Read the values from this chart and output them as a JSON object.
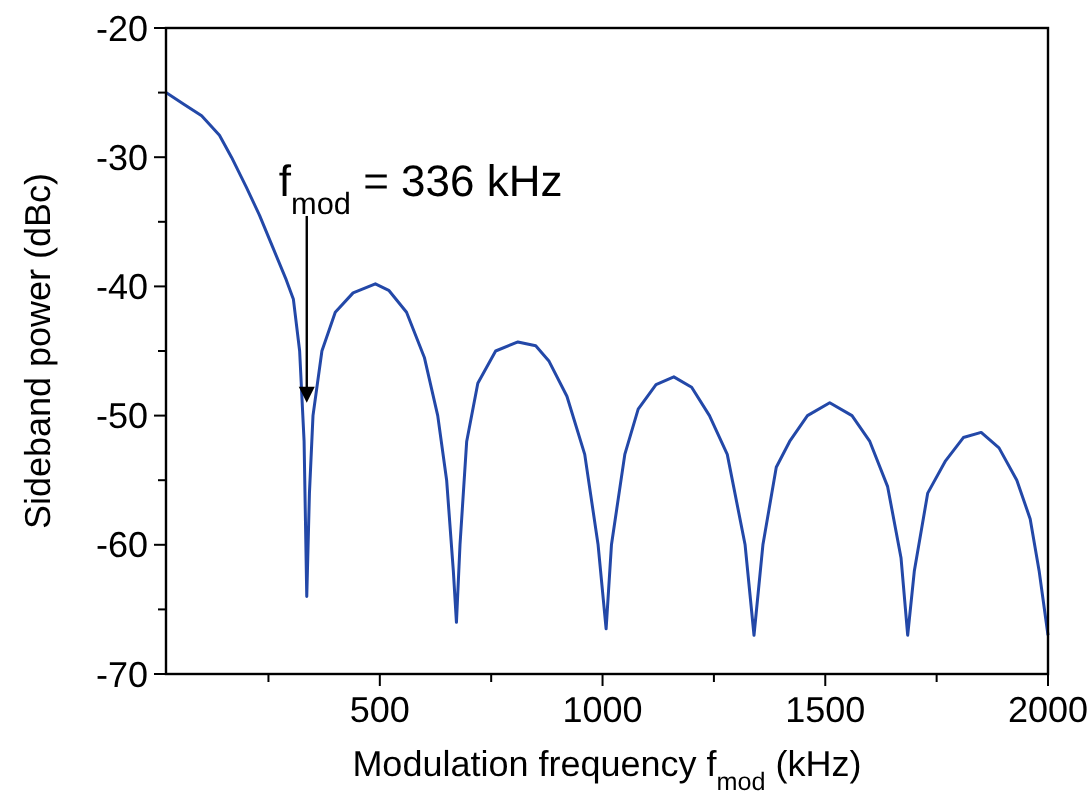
{
  "chart_data": {
    "type": "line",
    "xlabel": "Modulation frequency f$_{mod}$ (kHz)",
    "ylabel": "Sideband power (dBc)",
    "xlim": [
      20,
      2000
    ],
    "ylim": [
      -70,
      -20
    ],
    "xticks": [
      {
        "value": 250,
        "label": null
      },
      500,
      {
        "value": 750,
        "label": null
      },
      1000,
      {
        "value": 1250,
        "label": null
      },
      1500,
      {
        "value": 1750,
        "label": null
      },
      2000
    ],
    "yticks": [
      -70,
      {
        "value": -65,
        "label": null
      },
      -60,
      {
        "value": -55,
        "label": null
      },
      -50,
      {
        "value": -45,
        "label": null
      },
      -40,
      {
        "value": -35,
        "label": null
      },
      -30,
      {
        "value": -25,
        "label": null
      },
      -20
    ],
    "grid": false,
    "marker": "none",
    "line_style": "solid",
    "annotations": [
      {
        "text": "f$_{mod}$ = 336 kHz",
        "x": 336,
        "y": -49
      }
    ],
    "series": [
      {
        "color": "#2348a8",
        "x": [
          20,
          60,
          100,
          140,
          167,
          200,
          230,
          260,
          290,
          306,
          320,
          330,
          336,
          342,
          350,
          370,
          400,
          440,
          490,
          520,
          560,
          600,
          630,
          650,
          665,
          672,
          680,
          695,
          720,
          760,
          810,
          850,
          880,
          920,
          960,
          990,
          1008,
          1020,
          1050,
          1080,
          1120,
          1160,
          1200,
          1240,
          1280,
          1320,
          1340,
          1360,
          1390,
          1420,
          1460,
          1510,
          1560,
          1600,
          1640,
          1670,
          1685,
          1700,
          1730,
          1770,
          1810,
          1850,
          1890,
          1930,
          1960,
          1980,
          2000
        ],
        "values": [
          -25,
          -25.9,
          -26.8,
          -28.3,
          -30,
          -32.3,
          -34.5,
          -37,
          -39.5,
          -41,
          -45,
          -52,
          -64,
          -56,
          -50,
          -45,
          -42,
          -40.5,
          -39.8,
          -40.3,
          -42,
          -45.5,
          -50,
          -55,
          -62,
          -66,
          -60,
          -52,
          -47.5,
          -45,
          -44.3,
          -44.6,
          -45.8,
          -48.5,
          -53,
          -60,
          -66.5,
          -60,
          -53,
          -49.5,
          -47.6,
          -47,
          -47.8,
          -50,
          -53,
          -60,
          -67,
          -60,
          -54,
          -52,
          -50,
          -49,
          -50,
          -52,
          -55.5,
          -61,
          -67,
          -62,
          -56,
          -53.5,
          -51.7,
          -51.3,
          -52.5,
          -55,
          -58,
          -62,
          -67
        ]
      }
    ]
  }
}
